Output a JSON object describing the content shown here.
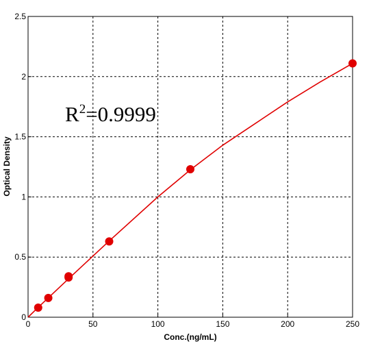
{
  "chart_data": {
    "type": "scatter",
    "xlabel": "Conc.(ng/mL)",
    "ylabel": "Optical Density",
    "xlim": [
      0,
      250
    ],
    "ylim": [
      0,
      2.5
    ],
    "x_ticks": [
      0,
      50,
      100,
      150,
      200,
      250
    ],
    "y_ticks": [
      0,
      0.5,
      1,
      1.5,
      2,
      2.5
    ],
    "x_tick_labels": [
      "0",
      "50",
      "100",
      "150",
      "200",
      "250"
    ],
    "y_tick_labels": [
      "0",
      "0.5",
      "1",
      "1.5",
      "2",
      "2.5"
    ],
    "grid": true,
    "annotation": {
      "base": "R",
      "superscript": "2",
      "rest": "=0.9999"
    },
    "series": [
      {
        "points": [
          {
            "x": 7.8,
            "y": 0.08
          },
          {
            "x": 15.6,
            "y": 0.16
          },
          {
            "x": 31.2,
            "y": 0.33
          },
          {
            "x": 31.2,
            "y": 0.34
          },
          {
            "x": 62.5,
            "y": 0.63
          },
          {
            "x": 125,
            "y": 1.23
          },
          {
            "x": 250,
            "y": 2.11
          }
        ],
        "fit_curve": {
          "x": [
            0,
            7.8,
            15.6,
            31.2,
            62.5,
            100,
            125,
            150,
            175,
            200,
            225,
            250
          ],
          "y": [
            0,
            0.082,
            0.161,
            0.32,
            0.634,
            1.0,
            1.225,
            1.43,
            1.61,
            1.79,
            1.955,
            2.11
          ]
        },
        "color": "#e00000"
      }
    ]
  }
}
